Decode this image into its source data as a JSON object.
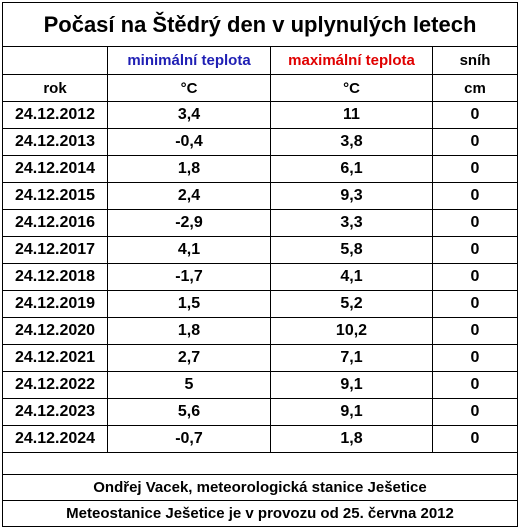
{
  "title": "Počasí na Štědrý den v uplynulých letech",
  "table": {
    "header_top": {
      "min": "minimální teplota",
      "max": "maximální teplota",
      "snow": "sníh"
    },
    "header_units": [
      "rok",
      "°C",
      "°C",
      "cm"
    ],
    "rows": [
      [
        "24.12.2012",
        "3,4",
        "11",
        "0"
      ],
      [
        "24.12.2013",
        "-0,4",
        "3,8",
        "0"
      ],
      [
        "24.12.2014",
        "1,8",
        "6,1",
        "0"
      ],
      [
        "24.12.2015",
        "2,4",
        "9,3",
        "0"
      ],
      [
        "24.12.2016",
        "-2,9",
        "3,3",
        "0"
      ],
      [
        "24.12.2017",
        "4,1",
        "5,8",
        "0"
      ],
      [
        "24.12.2018",
        "-1,7",
        "4,1",
        "0"
      ],
      [
        "24.12.2019",
        "1,5",
        "5,2",
        "0"
      ],
      [
        "24.12.2020",
        "1,8",
        "10,2",
        "0"
      ],
      [
        "24.12.2021",
        "2,7",
        "7,1",
        "0"
      ],
      [
        "24.12.2022",
        "5",
        "9,1",
        "0"
      ],
      [
        "24.12.2023",
        "5,6",
        "9,1",
        "0"
      ],
      [
        "24.12.2024",
        "-0,7",
        "1,8",
        "0"
      ]
    ]
  },
  "footer": [
    "Ondřej Vacek, meteorologická stanice Ješetice",
    "Meteostanice Ješetice je v provozu od 25. června 2012"
  ]
}
